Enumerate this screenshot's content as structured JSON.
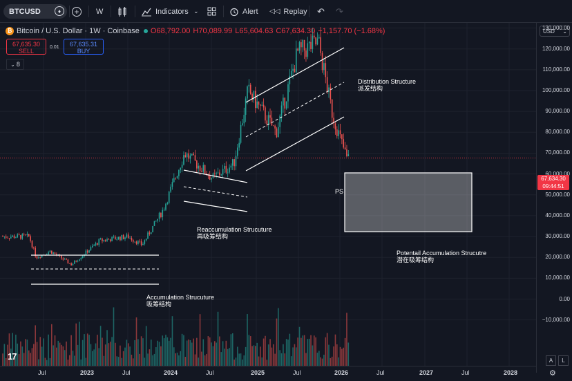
{
  "toolbar": {
    "symbol": "BTCUSD",
    "interval": "W",
    "indicators_label": "Indicators",
    "alert_label": "Alert",
    "replay_label": "Replay"
  },
  "legend": {
    "title": "Bitcoin / U.S. Dollar · 1W · Coinbase",
    "open": "O68,792.00",
    "high": "H70,089.99",
    "low": "L65,604.63",
    "close": "C67,634.30",
    "change": "−1,157.70 (−1.68%)",
    "indicator_count": "8"
  },
  "trade": {
    "sell_price": "67,635.30",
    "sell_label": "SELL",
    "spread": "0.01",
    "buy_price": "67,635.31",
    "buy_label": "BUY"
  },
  "axis": {
    "currency": "USD",
    "ticks": [
      "130,000.00",
      "120,000.00",
      "110,000.00",
      "100,000.00",
      "90,000.00",
      "80,000.00",
      "70,000.00",
      "60,000.00",
      "50,000.00",
      "40,000.00",
      "30,000.00",
      "20,000.00",
      "10,000.00",
      "0.00",
      "−10,000.00"
    ],
    "current_price": "67,634.30",
    "countdown": "09:44:51",
    "x_ticks": [
      "Jul",
      "2023",
      "Jul",
      "2024",
      "Jul",
      "2025",
      "Jul",
      "2026",
      "Jul",
      "2027",
      "Jul",
      "2028"
    ],
    "auto_label": "A",
    "log_label": "L"
  },
  "annotations": {
    "accumulation": "Accumulation Strucuture",
    "accumulation_cn": "吸筹结构",
    "reaccumulation": "Reaccumulation Strucuture",
    "reaccumulation_cn": "再吸筹结构",
    "distribution": "Distribution Structure",
    "distribution_cn": "派发结构",
    "potential": "Potentail Accumulation Strucutre",
    "potential_cn": "潜在吸筹结构",
    "ps": "PS"
  },
  "colors": {
    "up": "#26a69a",
    "down": "#ef5350",
    "bg": "#131722",
    "grid": "#1e222d",
    "price_line": "#f23645"
  },
  "chart_data": {
    "type": "candlestick",
    "title": "Bitcoin / U.S. Dollar · 1W · Coinbase",
    "ylim": [
      -15000,
      135000
    ],
    "x_range": [
      "2022-05",
      "2028-03"
    ],
    "series_close_approx": [
      {
        "date": "2022-05",
        "v": 30000
      },
      {
        "date": "2022-06",
        "v": 20000
      },
      {
        "date": "2022-08",
        "v": 23000
      },
      {
        "date": "2022-11",
        "v": 16500
      },
      {
        "date": "2023-03",
        "v": 28000
      },
      {
        "date": "2023-07",
        "v": 30000
      },
      {
        "date": "2023-09",
        "v": 26000
      },
      {
        "date": "2023-12",
        "v": 43000
      },
      {
        "date": "2024-03",
        "v": 70000
      },
      {
        "date": "2024-07",
        "v": 58000
      },
      {
        "date": "2024-10",
        "v": 65000
      },
      {
        "date": "2024-12",
        "v": 100000
      },
      {
        "date": "2025-04",
        "v": 80000
      },
      {
        "date": "2025-07",
        "v": 118000
      },
      {
        "date": "2025-10",
        "v": 123000
      },
      {
        "date": "2025-12",
        "v": 88000
      },
      {
        "date": "2026-02",
        "v": 67634
      }
    ],
    "zone": {
      "label": "Potentail Accumulation Strucutre",
      "y_top": 70000,
      "y_bottom": 43000
    }
  }
}
